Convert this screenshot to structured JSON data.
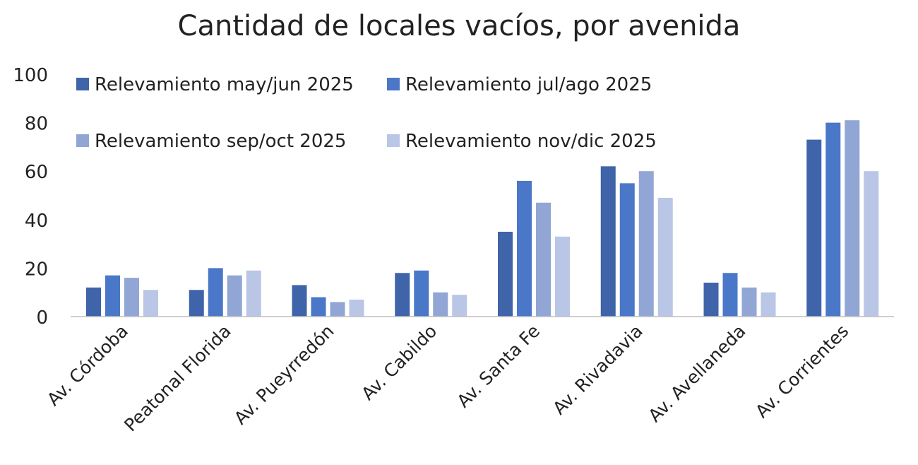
{
  "chart_data": {
    "type": "bar",
    "title": "Cantidad de locales vacíos, por avenida",
    "xlabel": "",
    "ylabel": "",
    "ylim": [
      0,
      100
    ],
    "yticks": [
      "0",
      "20",
      "40",
      "60",
      "80",
      "100"
    ],
    "grid": false,
    "legend_position": "top-left",
    "categories": [
      "Av. Córdoba",
      "Peatonal Florida",
      "Av. Pueyrredón",
      "Av. Cabildo",
      "Av. Santa Fe",
      "Av. Rivadavia",
      "Av. Avellaneda",
      "Av. Corrientes"
    ],
    "series": [
      {
        "name": "Relevamiento may/jun 2025",
        "color": "#3f64aa",
        "values": [
          12,
          11,
          13,
          18,
          35,
          62,
          14,
          73
        ]
      },
      {
        "name": "Relevamiento jul/ago 2025",
        "color": "#4a77c8",
        "values": [
          17,
          20,
          8,
          19,
          56,
          55,
          18,
          80
        ]
      },
      {
        "name": "Relevamiento sep/oct 2025",
        "color": "#91a6d4",
        "values": [
          16,
          17,
          6,
          10,
          47,
          60,
          12,
          81
        ]
      },
      {
        "name": "Relevamiento nov/dic 2025",
        "color": "#b9c6e6",
        "values": [
          11,
          19,
          7,
          9,
          33,
          49,
          10,
          60
        ]
      }
    ]
  }
}
